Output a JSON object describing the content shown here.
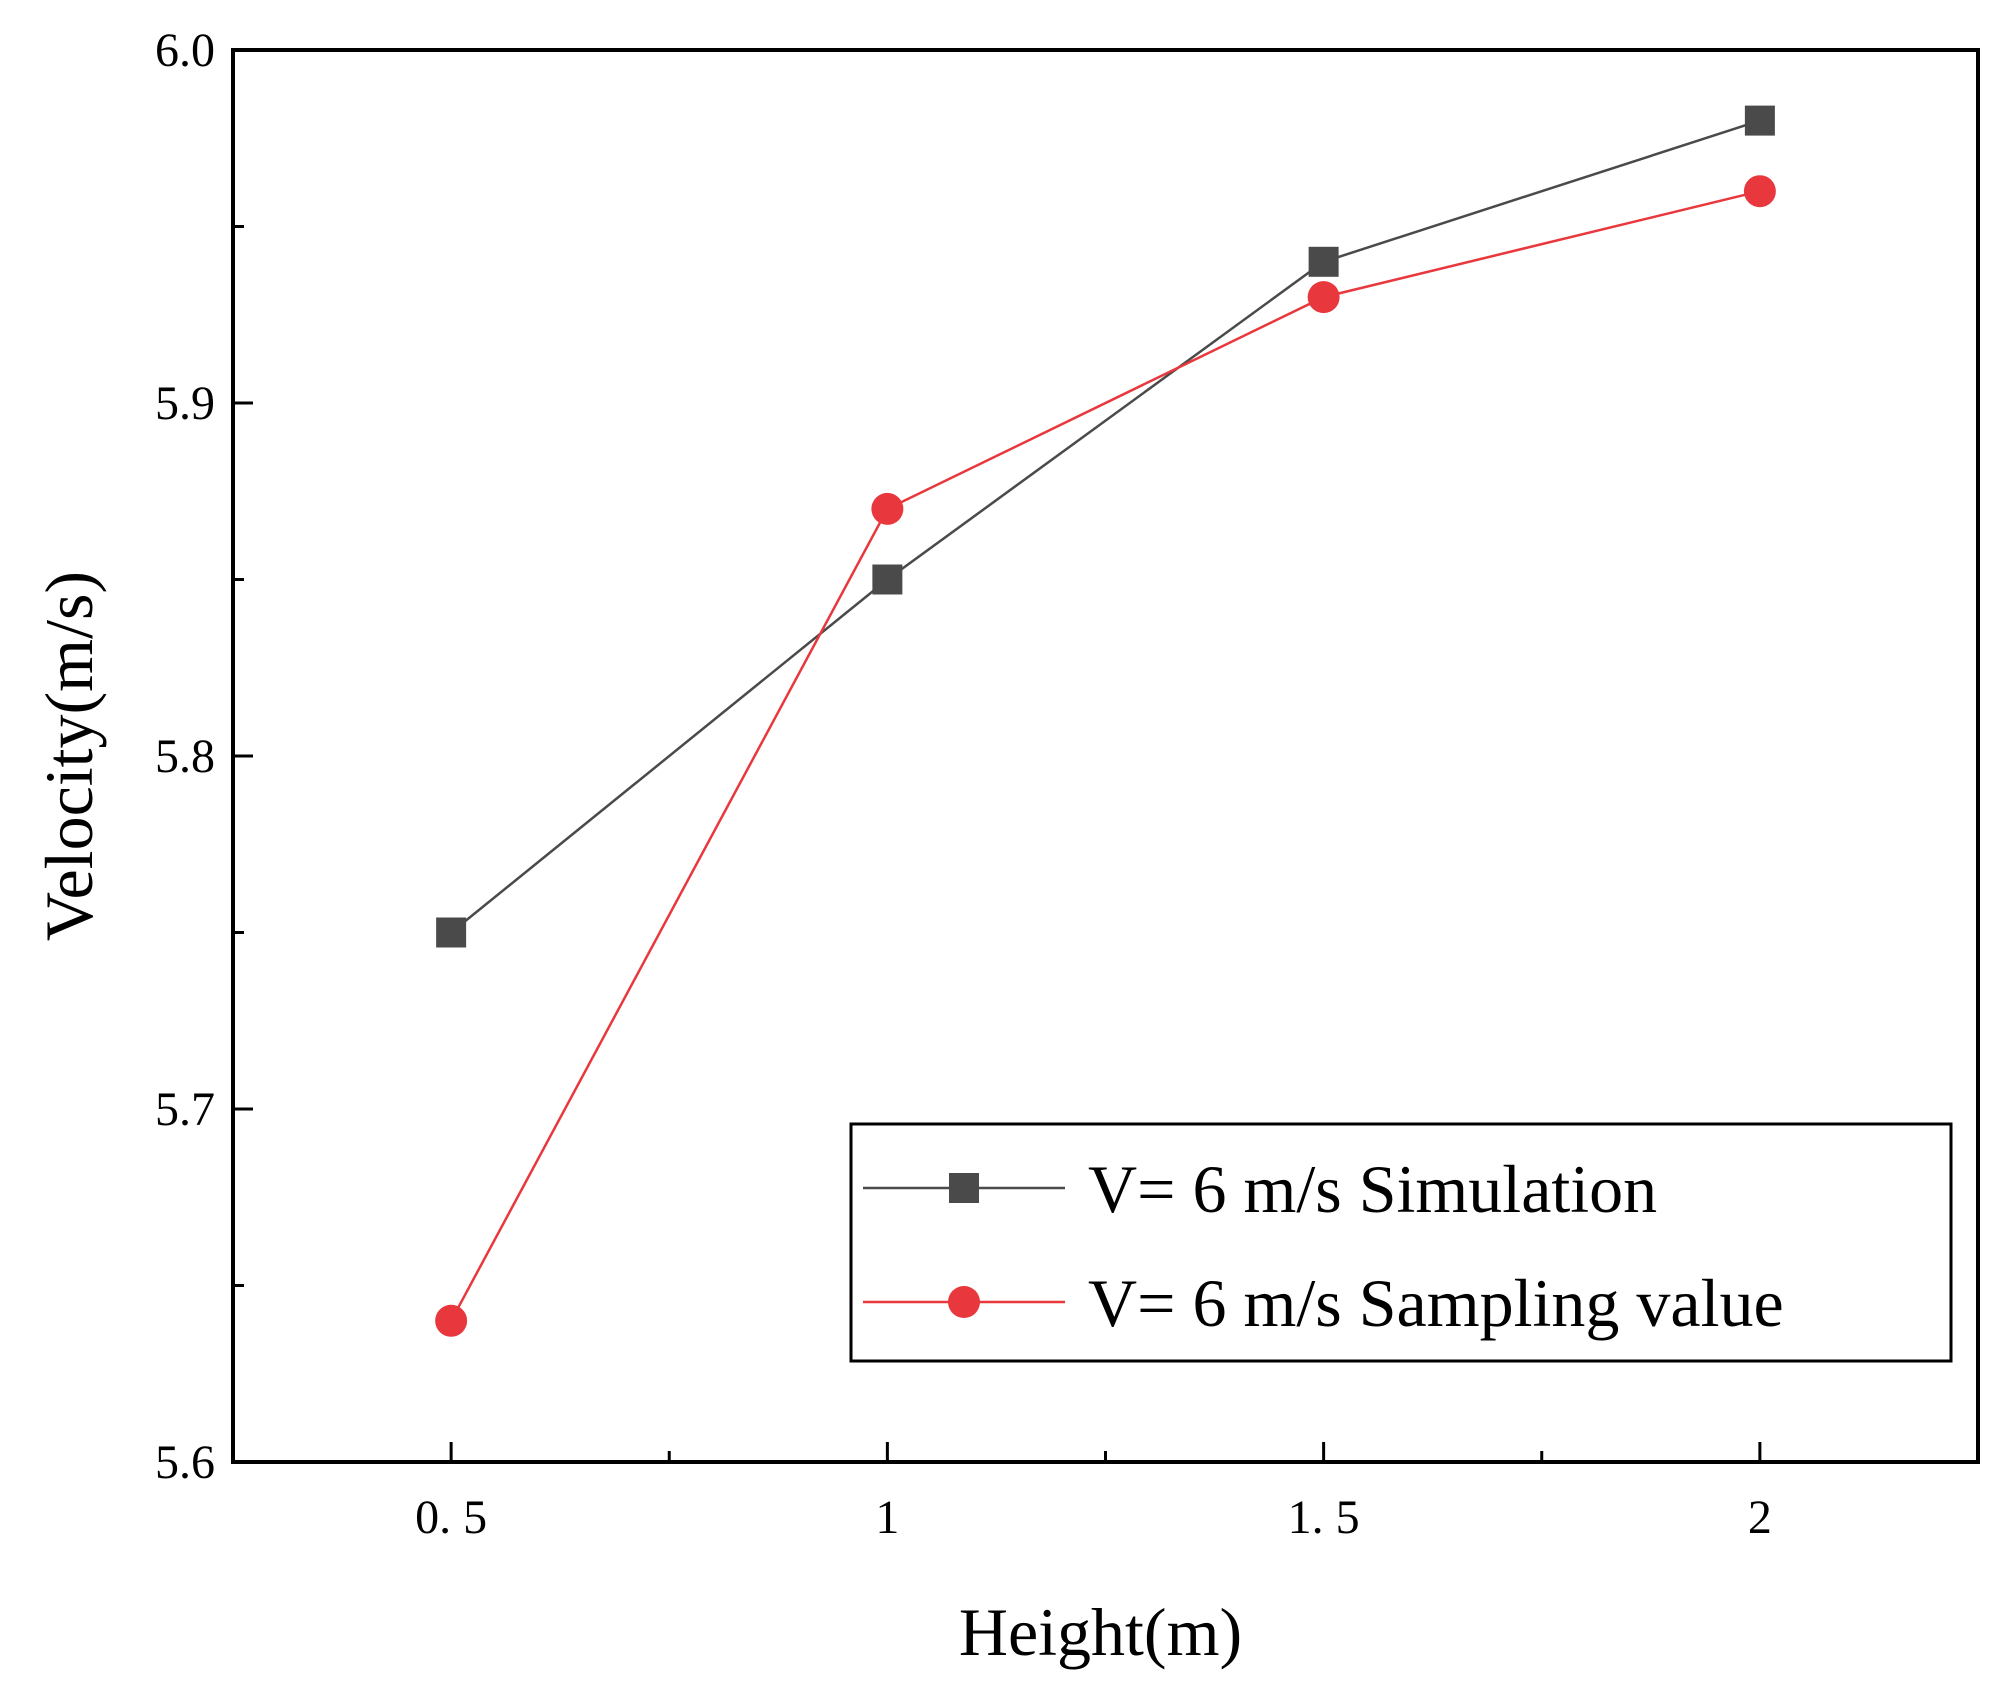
{
  "chart_data": {
    "type": "line",
    "title": "",
    "xlabel": "Height(m)",
    "ylabel": "Velocity(m/s)",
    "x": [
      0.5,
      1,
      1.5,
      2
    ],
    "x_tick_labels": [
      "0. 5",
      "1",
      "1. 5",
      "2"
    ],
    "xlim": [
      0.25,
      2.25
    ],
    "ylim": [
      5.6,
      6.0
    ],
    "y_ticks": [
      5.6,
      5.7,
      5.8,
      5.9,
      6.0
    ],
    "y_tick_labels": [
      "5.6",
      "5.7",
      "5.8",
      "5.9",
      "6.0"
    ],
    "grid": false,
    "legend_position": "bottom-right",
    "series": [
      {
        "name": "V= 6 m/s Simulation",
        "values": [
          5.75,
          5.85,
          5.94,
          5.98
        ],
        "color": "#4a4a4a",
        "marker": "square"
      },
      {
        "name": "V= 6 m/s Sampling value",
        "values": [
          5.64,
          5.87,
          5.93,
          5.96
        ],
        "color": "#e8383d",
        "marker": "circle"
      }
    ]
  }
}
